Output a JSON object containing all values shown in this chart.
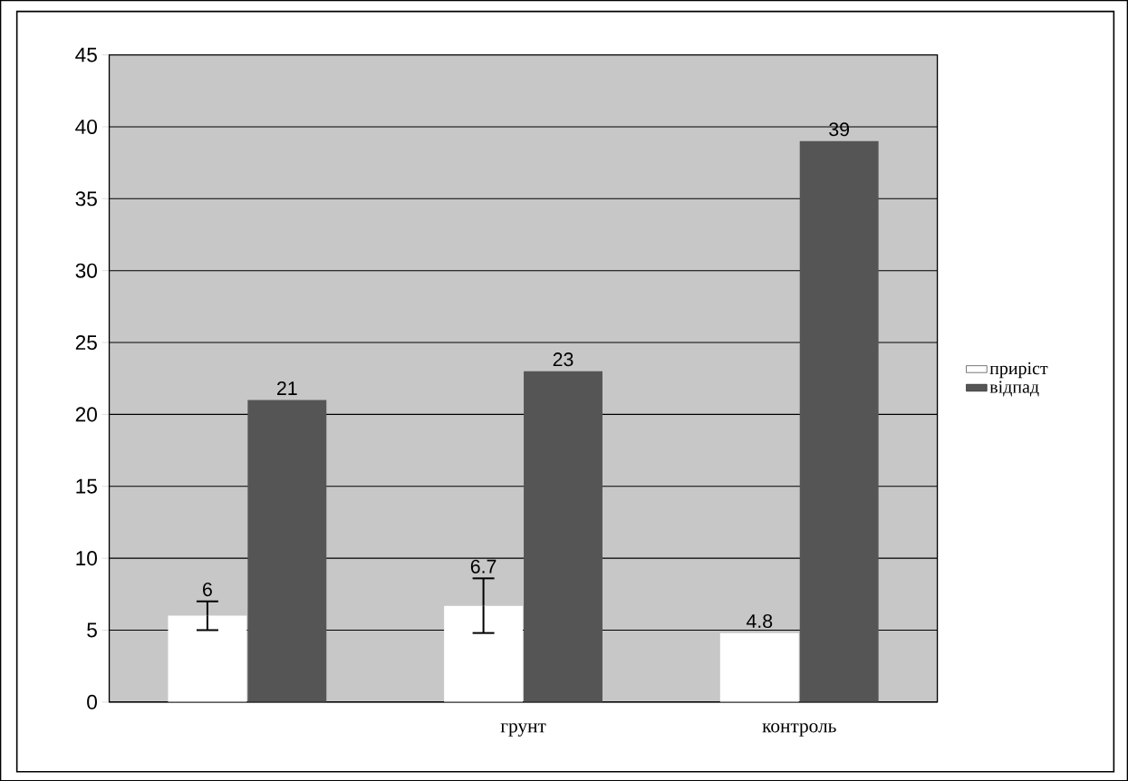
{
  "chart_data": {
    "type": "bar",
    "categories": [
      null,
      "грунт",
      "контроль"
    ],
    "series": [
      {
        "name": "приріст",
        "color": "#ffffff",
        "values": [
          6,
          6.7,
          4.8
        ],
        "errors": [
          1,
          1.9,
          null
        ]
      },
      {
        "name": "відпад",
        "color": "#555555",
        "values": [
          21,
          23,
          39
        ]
      }
    ],
    "ylim": [
      0,
      45
    ],
    "yticks": [
      0,
      5,
      10,
      15,
      20,
      25,
      30,
      35,
      40,
      45
    ],
    "grid": "y",
    "legend": "right",
    "data_labels": true
  }
}
